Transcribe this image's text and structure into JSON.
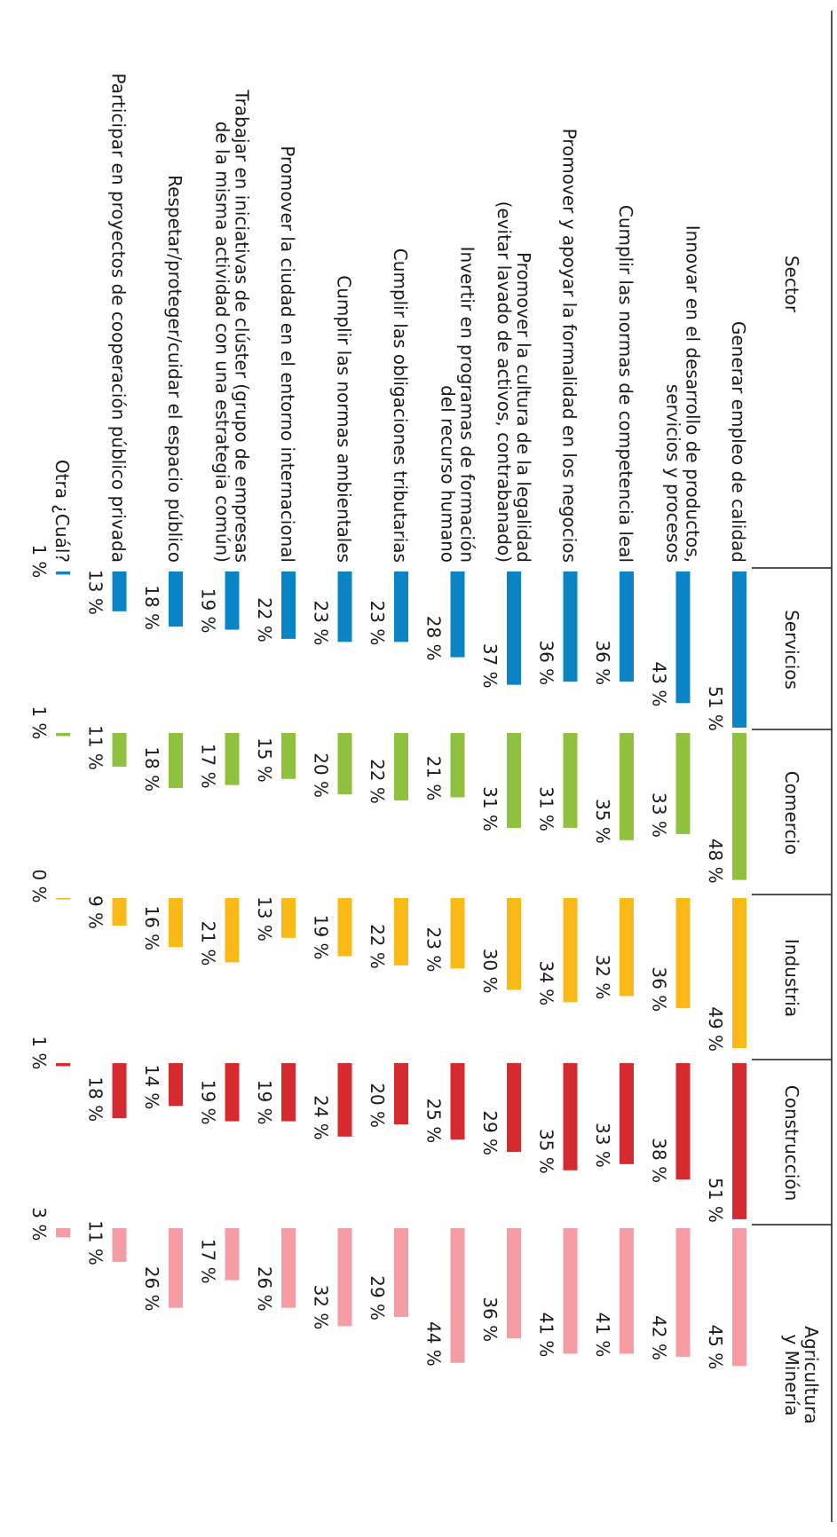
{
  "chart_data": {
    "type": "bar",
    "header": "Sector",
    "categories": [
      "Generar empleo de calidad",
      "Innovar en el desarrollo de productos, servicios y procesos",
      "Cumplir las normas de competencia leal",
      "Promover y apoyar la formalidad en los negocios",
      "Promover la cultura de la legalidad (evitar lavado de activos, contrabanado)",
      "Invertir en programas de formación del recurso humano",
      "Cumplir las obligaciones tributarias",
      "Cumplir las normas ambientales",
      "Promover la ciudad en el entorno internacional",
      "Trabajar en iniciativas de clúster (grupo de empresas de la misma actividad con una estrategia común)",
      "Respetar/proteger/cuidar el espacio público",
      "Participar en proyectos de cooperación público privada",
      "Otra ¿Cuál?"
    ],
    "label_lines": [
      [
        "Generar empleo de calidad"
      ],
      [
        "Innovar en el desarrollo de productos,",
        "servicios y procesos"
      ],
      [
        "Cumplir las normas de competencia leal"
      ],
      [
        "Promover y apoyar la formalidad en los negocios"
      ],
      [
        "Promover la cultura de la legalidad",
        "(evitar lavado de activos, contrabanado)"
      ],
      [
        "Invertir en programas de formación",
        "del recurso humano"
      ],
      [
        "Cumplir las obligaciones tributarias"
      ],
      [
        "Cumplir las normas ambientales"
      ],
      [
        "Promover la ciudad en el entorno internacional"
      ],
      [
        "Trabajar en iniciativas de clúster (grupo de empresas",
        "de la misma actividad con una estrategia común)"
      ],
      [
        "Respetar/proteger/cuidar el espacio público"
      ],
      [
        "Participar en proyectos de cooperación público privada"
      ],
      [
        "Otra ¿Cuál?"
      ]
    ],
    "unit": "%",
    "series": [
      {
        "name": "Servicios",
        "label_lines": [
          "Servicios"
        ],
        "color": "#0b84c6",
        "values": [
          51,
          43,
          36,
          36,
          37,
          28,
          23,
          23,
          22,
          19,
          18,
          13,
          1
        ]
      },
      {
        "name": "Comercio",
        "label_lines": [
          "Comercio"
        ],
        "color": "#8fc13f",
        "values": [
          48,
          33,
          35,
          31,
          31,
          21,
          22,
          20,
          15,
          17,
          18,
          11,
          1
        ]
      },
      {
        "name": "Industria",
        "label_lines": [
          "Industria"
        ],
        "color": "#fbb918",
        "values": [
          49,
          36,
          32,
          34,
          30,
          23,
          22,
          19,
          13,
          21,
          16,
          9,
          0
        ]
      },
      {
        "name": "Construcción",
        "label_lines": [
          "Construcción"
        ],
        "color": "#d42a30",
        "values": [
          51,
          38,
          33,
          35,
          29,
          25,
          20,
          24,
          19,
          19,
          14,
          18,
          1
        ]
      },
      {
        "name": "Agricultura y Minería",
        "label_lines": [
          "Agricultura",
          "y Minería"
        ],
        "color": "#f59ca4",
        "values": [
          45,
          42,
          41,
          41,
          36,
          44,
          29,
          32,
          26,
          17,
          26,
          11,
          3
        ]
      }
    ]
  }
}
